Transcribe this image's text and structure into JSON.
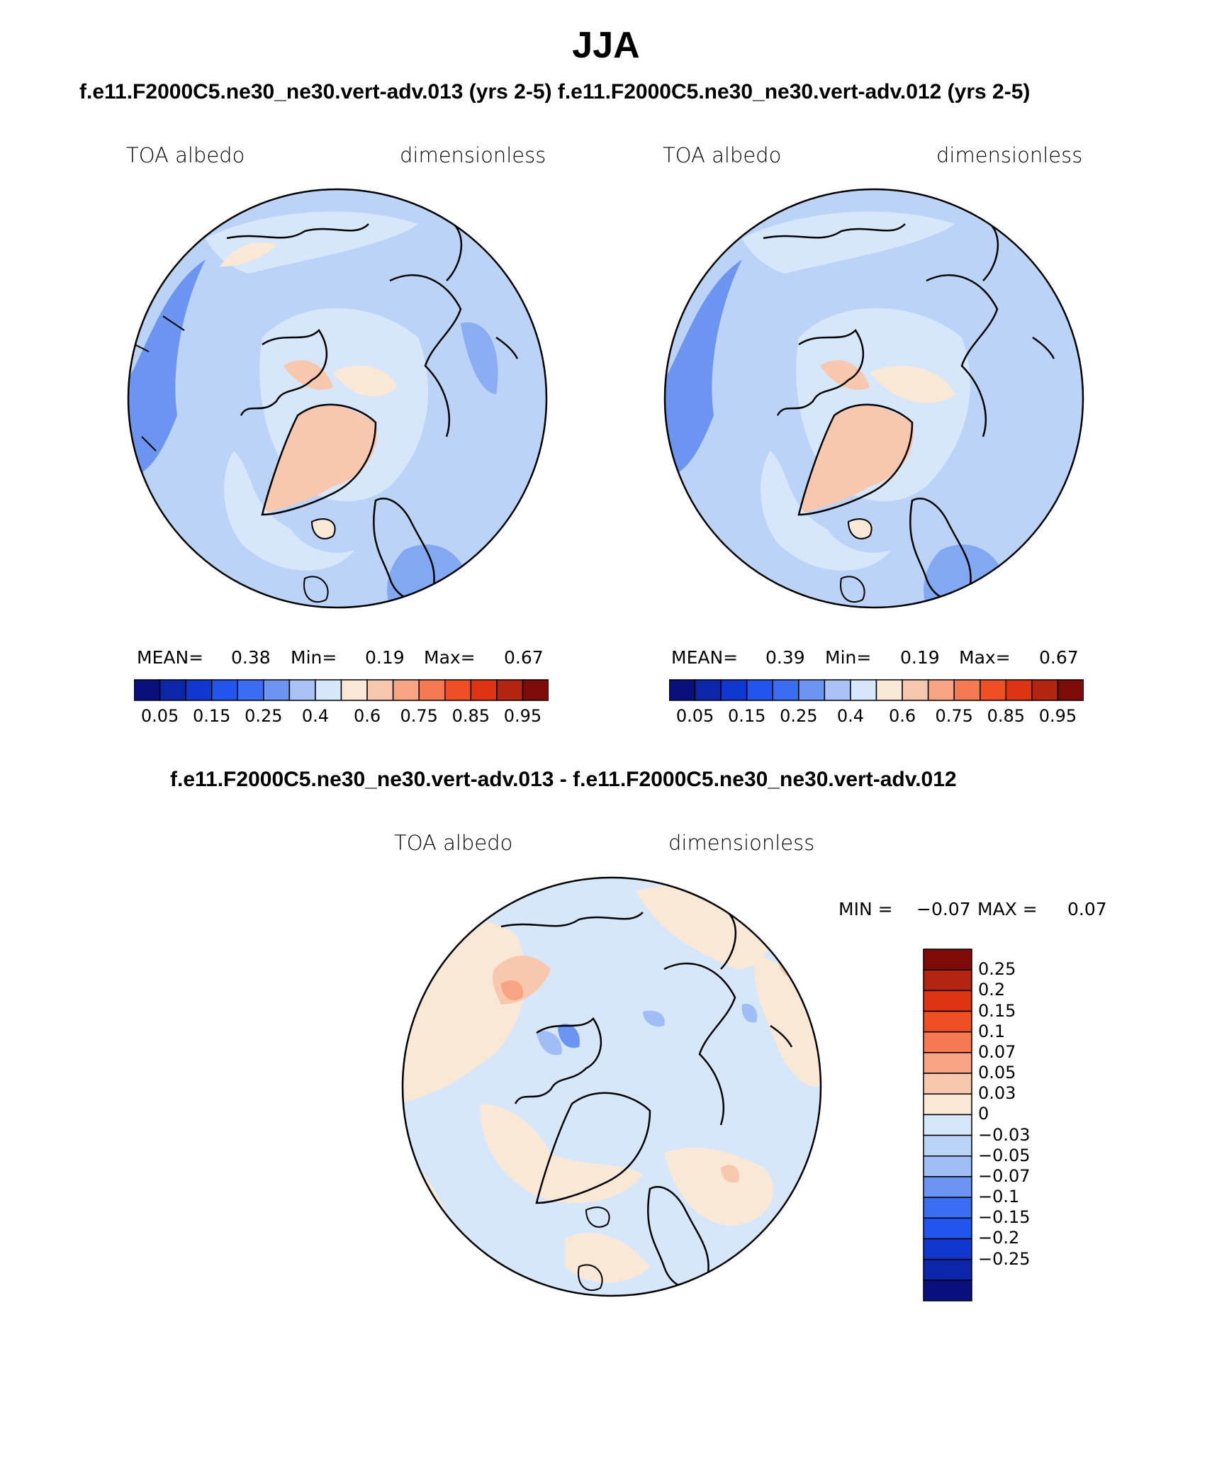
{
  "header": {
    "title": "JJA",
    "subtitle": "f.e11.F2000C5.ne30_ne30.vert-adv.013 (yrs 2-5) f.e11.F2000C5.ne30_ne30.vert-adv.012 (yrs 2-5)",
    "diff_title": "f.e11.F2000C5.ne30_ne30.vert-adv.013 - f.e11.F2000C5.ne30_ne30.vert-adv.012"
  },
  "panels": [
    {
      "variable": "TOA albedo",
      "units": "dimensionless",
      "mean_label": "MEAN=",
      "mean_value": "0.38",
      "min_label": "Min=",
      "min_value": "0.19",
      "max_label": "Max=",
      "max_value": "0.67"
    },
    {
      "variable": "TOA albedo",
      "units": "dimensionless",
      "mean_label": "MEAN=",
      "mean_value": "0.39",
      "min_label": "Min=",
      "min_value": "0.19",
      "max_label": "Max=",
      "max_value": "0.67"
    }
  ],
  "diff_panel": {
    "variable": "TOA albedo",
    "units": "dimensionless",
    "min_label": "MIN =",
    "min_value": "−0.07",
    "max_label": "MAX =",
    "max_value": "0.07"
  },
  "colorbar_main": {
    "colors": [
      "#08107e",
      "#0b26a8",
      "#1137cf",
      "#2255ee",
      "#3a6df1",
      "#6b95f0",
      "#a9c3f7",
      "#d6e6fb",
      "#fae8d6",
      "#f8c8ae",
      "#f7a384",
      "#f57a53",
      "#f04e25",
      "#de3414",
      "#b42510",
      "#7e0a0a"
    ],
    "ticks": [
      "0.05",
      "0.15",
      "0.25",
      "0.4",
      "0.6",
      "0.75",
      "0.85",
      "0.95"
    ]
  },
  "colorbar_diff": {
    "colors": [
      "#7e0a0a",
      "#b42510",
      "#de3414",
      "#f04e25",
      "#f57a53",
      "#f7a384",
      "#f8c8ae",
      "#fae8d6",
      "#d6e6fb",
      "#bcd3f8",
      "#a0bdf6",
      "#6b95f0",
      "#3a6df1",
      "#2255ee",
      "#1137cf",
      "#0b26a8",
      "#08107e"
    ],
    "ticks": [
      "0.25",
      "0.2",
      "0.15",
      "0.1",
      "0.07",
      "0.05",
      "0.03",
      "0",
      "−0.03",
      "−0.05",
      "−0.07",
      "−0.1",
      "−0.15",
      "−0.2",
      "−0.25"
    ]
  }
}
